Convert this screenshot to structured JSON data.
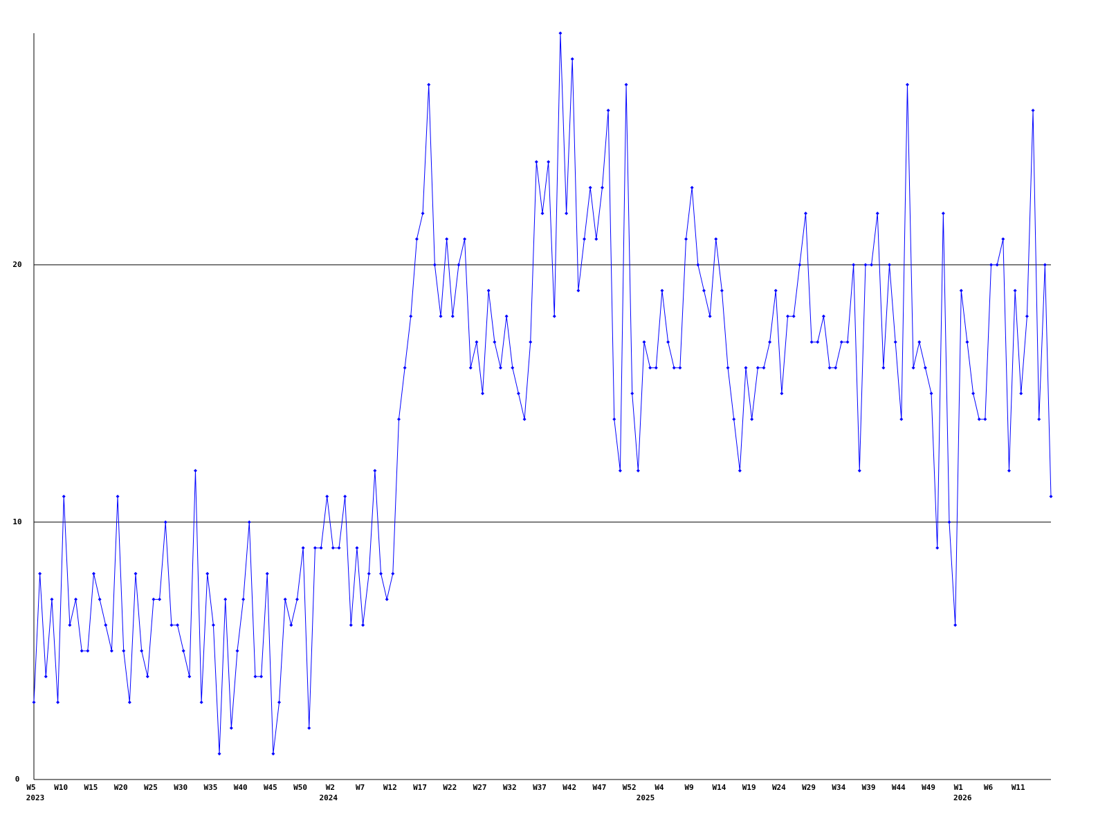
{
  "chart_data": {
    "type": "line",
    "color": "#0000ff",
    "categories": [
      "W5",
      null,
      null,
      null,
      null,
      "W10",
      null,
      null,
      null,
      null,
      "W15",
      null,
      null,
      null,
      null,
      "W20",
      null,
      null,
      null,
      null,
      "W25",
      null,
      null,
      null,
      null,
      "W30",
      null,
      null,
      null,
      null,
      "W35",
      null,
      null,
      null,
      null,
      "W40",
      null,
      null,
      null,
      null,
      "W45",
      null,
      null,
      null,
      null,
      "W50",
      null,
      null,
      null,
      null,
      "W2",
      null,
      null,
      null,
      null,
      "W7",
      null,
      null,
      null,
      null,
      "W12",
      null,
      null,
      null,
      null,
      "W17",
      null,
      null,
      null,
      null,
      "W22",
      null,
      null,
      null,
      null,
      "W27",
      null,
      null,
      null,
      null,
      "W32",
      null,
      null,
      null,
      null,
      "W37",
      null,
      null,
      null,
      null,
      "W42",
      null,
      null,
      null,
      null,
      "W47",
      null,
      null,
      null,
      null,
      "W52",
      null,
      null,
      null,
      null,
      "W4",
      null,
      null,
      null,
      null,
      "W9",
      null,
      null,
      null,
      null,
      "W14",
      null,
      null,
      null,
      null,
      "W19",
      null,
      null,
      null,
      null,
      "W24",
      null,
      null,
      null,
      null,
      "W29",
      null,
      null,
      null,
      null,
      "W34",
      null,
      null,
      null,
      null,
      "W39",
      null,
      null,
      null,
      null,
      "W44",
      null,
      null,
      null,
      null,
      "W49",
      null,
      null,
      null,
      null,
      "W1",
      null,
      null,
      null,
      null,
      "W6",
      null,
      null,
      null,
      null,
      "W11",
      null,
      null,
      null,
      null,
      null
    ],
    "years": [
      "2023",
      null,
      null,
      null,
      null,
      null,
      null,
      null,
      null,
      null,
      null,
      null,
      null,
      null,
      null,
      null,
      null,
      null,
      null,
      null,
      null,
      null,
      null,
      null,
      null,
      null,
      null,
      null,
      null,
      null,
      null,
      null,
      null,
      null,
      null,
      null,
      null,
      null,
      null,
      null,
      null,
      null,
      null,
      null,
      null,
      null,
      null,
      null,
      null,
      "2024",
      null,
      null,
      null,
      null,
      null,
      null,
      null,
      null,
      null,
      null,
      null,
      null,
      null,
      null,
      null,
      null,
      null,
      null,
      null,
      null,
      null,
      null,
      null,
      null,
      null,
      null,
      null,
      null,
      null,
      null,
      null,
      null,
      null,
      null,
      null,
      null,
      null,
      null,
      null,
      null,
      null,
      null,
      null,
      null,
      null,
      null,
      null,
      null,
      null,
      null,
      null,
      null,
      "2025",
      null,
      null,
      null,
      null,
      null,
      null,
      null,
      null,
      null,
      null,
      null,
      null,
      null,
      null,
      null,
      null,
      null,
      null,
      null,
      null,
      null,
      null,
      null,
      null,
      null,
      null,
      null,
      null,
      null,
      null,
      null,
      null,
      null,
      null,
      null,
      null,
      null,
      null,
      null,
      null,
      null,
      null,
      null,
      null,
      null,
      null,
      null,
      null,
      null,
      null,
      null,
      null,
      "2026",
      null,
      null,
      null,
      null,
      null,
      null,
      null,
      null,
      null,
      null,
      null,
      null,
      null,
      null,
      null
    ],
    "values": [
      3,
      8,
      4,
      7,
      3,
      11,
      6,
      7,
      5,
      5,
      8,
      7,
      6,
      5,
      11,
      5,
      3,
      8,
      5,
      4,
      7,
      7,
      10,
      6,
      6,
      5,
      4,
      12,
      3,
      8,
      6,
      1,
      7,
      2,
      5,
      7,
      10,
      4,
      4,
      8,
      1,
      3,
      7,
      6,
      7,
      9,
      2,
      9,
      9,
      11,
      9,
      9,
      11,
      6,
      9,
      6,
      8,
      12,
      8,
      7,
      8,
      14,
      16,
      18,
      21,
      22,
      27,
      20,
      18,
      21,
      18,
      20,
      21,
      16,
      17,
      15,
      19,
      17,
      16,
      18,
      16,
      15,
      14,
      17,
      24,
      22,
      24,
      18,
      29,
      22,
      28,
      19,
      21,
      23,
      21,
      23,
      26,
      14,
      12,
      27,
      15,
      12,
      17,
      16,
      16,
      19,
      17,
      16,
      16,
      21,
      23,
      20,
      19,
      18,
      21,
      19,
      16,
      14,
      12,
      16,
      14,
      16,
      16,
      17,
      19,
      15,
      18,
      18,
      20,
      22,
      17,
      17,
      18,
      16,
      16,
      17,
      17,
      20,
      12,
      20,
      20,
      22,
      16,
      20,
      17,
      14,
      27,
      16,
      17,
      16,
      15,
      9,
      22,
      10,
      6,
      19,
      17,
      15,
      14,
      14,
      20,
      20,
      21,
      12,
      19,
      15,
      18,
      26,
      14,
      20,
      11
    ],
    "ylim": [
      0,
      29
    ],
    "yticks": [
      0,
      10,
      20
    ],
    "grid": true
  }
}
